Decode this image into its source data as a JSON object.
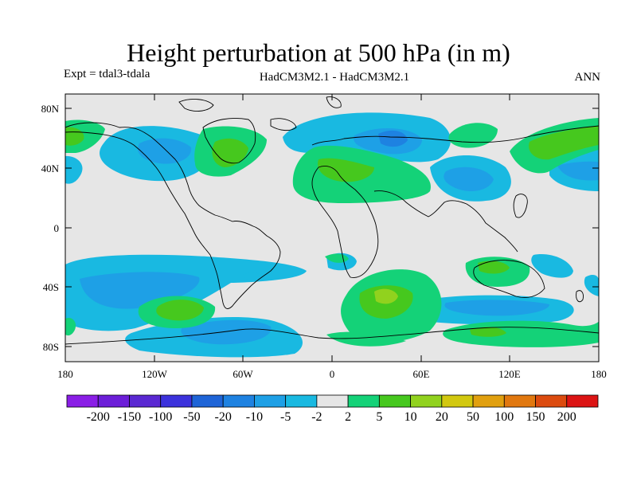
{
  "title": "Height perturbation at 500 hPa (in m)",
  "left_label": "Expt = tdal3-tdala",
  "center_label": "HadCM3M2.1 - HadCM3M2.1",
  "right_label": "ANN",
  "lat_ticks": [
    "80N",
    "40N",
    "0",
    "40S",
    "80S"
  ],
  "lon_ticks": [
    "180",
    "120W",
    "60W",
    "0",
    "60E",
    "120E",
    "180"
  ],
  "colorbar": {
    "colors": [
      "#8a1ee6",
      "#6c1ed8",
      "#5a28d2",
      "#3c32dc",
      "#1e64d7",
      "#1e82e1",
      "#1ea0e6",
      "#19b9e1",
      "#e6e6e6",
      "#14d278",
      "#46c81e",
      "#91d21e",
      "#d2c80f",
      "#e1a00f",
      "#e1780f",
      "#dc4b0f",
      "#dc1414"
    ],
    "labels": [
      "-200",
      "-150",
      "-100",
      "-50",
      "-20",
      "-10",
      "-5",
      "-2",
      "2",
      "5",
      "10",
      "20",
      "50",
      "100",
      "150",
      "200"
    ]
  },
  "palette": {
    "neutral": "#e6e6e6",
    "neg_light": "#19b9e1",
    "neg_mid": "#1ea0e6",
    "neg_dark": "#1e82e1",
    "pos_light": "#14d278",
    "pos_mid": "#46c81e"
  }
}
